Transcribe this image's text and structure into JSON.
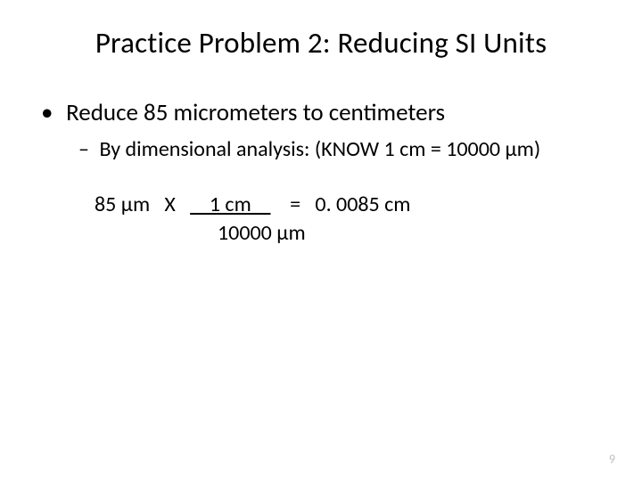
{
  "title": "Practice Problem 2: Reducing SI Units",
  "bullet1": "Reduce 85 micrometers to centimeters",
  "bullet2": "By dimensional analysis: (KNOW 1 cm = 10000 μm)",
  "calc": {
    "prefix": "85 μm   X   ",
    "numerator": "    1 cm    ",
    "middle": "    =   0. 0085 cm",
    "denominator": "10000 μm"
  },
  "pageNumber": "9",
  "colors": {
    "text": "#000000",
    "background": "#ffffff",
    "pageNum": "#bfbfbf"
  },
  "fontSizes": {
    "title": 33,
    "bullet1": 27,
    "bullet2": 24,
    "calc": 24,
    "pageNum": 14
  }
}
